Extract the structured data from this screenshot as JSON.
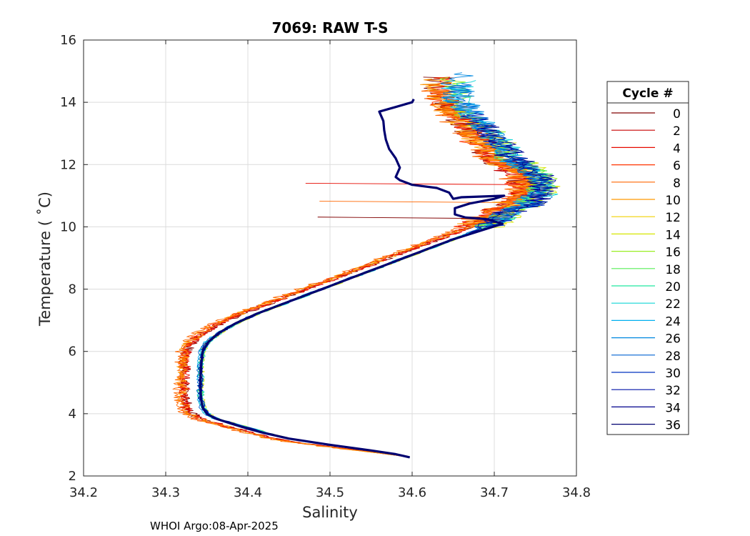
{
  "chart_data": {
    "type": "line",
    "title": "7069: RAW T-S",
    "xlabel": "Salinity",
    "ylabel": "Temperature ( ˚C)",
    "xlim": [
      34.2,
      34.8
    ],
    "ylim": [
      2,
      16
    ],
    "xticks": [
      "34.2",
      "34.3",
      "34.4",
      "34.5",
      "34.6",
      "34.7",
      "34.8"
    ],
    "yticks": [
      "2",
      "4",
      "6",
      "8",
      "10",
      "12",
      "14",
      "16"
    ],
    "grid": true,
    "footer": "WHOI Argo:08-Apr-2025",
    "legend": {
      "title": "Cycle #",
      "position": "right",
      "entries": [
        {
          "label": "0",
          "color": "#800000"
        },
        {
          "label": "2",
          "color": "#c80000"
        },
        {
          "label": "4",
          "color": "#e60a00"
        },
        {
          "label": "6",
          "color": "#ff3300"
        },
        {
          "label": "8",
          "color": "#ff6600"
        },
        {
          "label": "10",
          "color": "#ff9900"
        },
        {
          "label": "12",
          "color": "#f2d000"
        },
        {
          "label": "14",
          "color": "#d6e600"
        },
        {
          "label": "16",
          "color": "#99ee22"
        },
        {
          "label": "18",
          "color": "#55ee55"
        },
        {
          "label": "20",
          "color": "#22e6a0"
        },
        {
          "label": "22",
          "color": "#11d6d6"
        },
        {
          "label": "24",
          "color": "#00b0f0"
        },
        {
          "label": "26",
          "color": "#0088e0"
        },
        {
          "label": "28",
          "color": "#0060d0"
        },
        {
          "label": "30",
          "color": "#0033c0"
        },
        {
          "label": "32",
          "color": "#0010a8"
        },
        {
          "label": "34",
          "color": "#00008c"
        },
        {
          "label": "36",
          "color": "#000070"
        }
      ]
    },
    "base_profile": [
      [
        34.597,
        2.6
      ],
      [
        34.58,
        2.68
      ],
      [
        34.55,
        2.8
      ],
      [
        34.5,
        3.0
      ],
      [
        34.45,
        3.2
      ],
      [
        34.42,
        3.4
      ],
      [
        34.4,
        3.55
      ],
      [
        34.38,
        3.7
      ],
      [
        34.36,
        3.85
      ],
      [
        34.35,
        4.0
      ],
      [
        34.345,
        4.2
      ],
      [
        34.342,
        4.5
      ],
      [
        34.342,
        5.0
      ],
      [
        34.342,
        5.5
      ],
      [
        34.344,
        6.0
      ],
      [
        34.35,
        6.3
      ],
      [
        34.365,
        6.6
      ],
      [
        34.385,
        6.9
      ],
      [
        34.41,
        7.2
      ],
      [
        34.44,
        7.5
      ],
      [
        34.47,
        7.8
      ],
      [
        34.5,
        8.1
      ],
      [
        34.53,
        8.4
      ],
      [
        34.56,
        8.7
      ],
      [
        34.59,
        9.0
      ],
      [
        34.62,
        9.3
      ],
      [
        34.65,
        9.6
      ],
      [
        34.68,
        9.9
      ],
      [
        34.705,
        10.2
      ],
      [
        34.72,
        10.5
      ],
      [
        34.74,
        10.7
      ],
      [
        34.755,
        11.0
      ],
      [
        34.76,
        11.3
      ],
      [
        34.755,
        11.6
      ],
      [
        34.74,
        11.9
      ],
      [
        34.72,
        12.2
      ],
      [
        34.71,
        12.6
      ],
      [
        34.695,
        13.0
      ],
      [
        34.68,
        13.4
      ],
      [
        34.665,
        13.8
      ],
      [
        34.655,
        14.2
      ]
    ],
    "cycle36_profile": [
      [
        34.597,
        2.6
      ],
      [
        34.58,
        2.7
      ],
      [
        34.55,
        2.82
      ],
      [
        34.5,
        3.0
      ],
      [
        34.45,
        3.2
      ],
      [
        34.42,
        3.38
      ],
      [
        34.4,
        3.52
      ],
      [
        34.38,
        3.68
      ],
      [
        34.36,
        3.85
      ],
      [
        34.35,
        4.0
      ],
      [
        34.345,
        4.2
      ],
      [
        34.343,
        4.5
      ],
      [
        34.342,
        5.0
      ],
      [
        34.343,
        5.5
      ],
      [
        34.345,
        6.0
      ],
      [
        34.352,
        6.3
      ],
      [
        34.365,
        6.6
      ],
      [
        34.385,
        6.9
      ],
      [
        34.41,
        7.2
      ],
      [
        34.44,
        7.5
      ],
      [
        34.47,
        7.8
      ],
      [
        34.5,
        8.1
      ],
      [
        34.53,
        8.4
      ],
      [
        34.56,
        8.7
      ],
      [
        34.59,
        9.0
      ],
      [
        34.62,
        9.3
      ],
      [
        34.65,
        9.6
      ],
      [
        34.68,
        9.85
      ],
      [
        34.71,
        10.1
      ],
      [
        34.69,
        10.25
      ],
      [
        34.665,
        10.3
      ],
      [
        34.652,
        10.4
      ],
      [
        34.652,
        10.6
      ],
      [
        34.67,
        10.75
      ],
      [
        34.7,
        10.9
      ],
      [
        34.712,
        11.0
      ],
      [
        34.66,
        10.95
      ],
      [
        34.65,
        10.9
      ],
      [
        34.645,
        11.1
      ],
      [
        34.63,
        11.25
      ],
      [
        34.6,
        11.35
      ],
      [
        34.585,
        11.5
      ],
      [
        34.58,
        11.6
      ],
      [
        34.585,
        11.9
      ],
      [
        34.58,
        12.2
      ],
      [
        34.572,
        12.5
      ],
      [
        34.568,
        12.8
      ],
      [
        34.566,
        13.1
      ],
      [
        34.565,
        13.4
      ],
      [
        34.56,
        13.7
      ],
      [
        34.58,
        13.85
      ],
      [
        34.6,
        14.0
      ],
      [
        34.602,
        14.1
      ]
    ]
  }
}
